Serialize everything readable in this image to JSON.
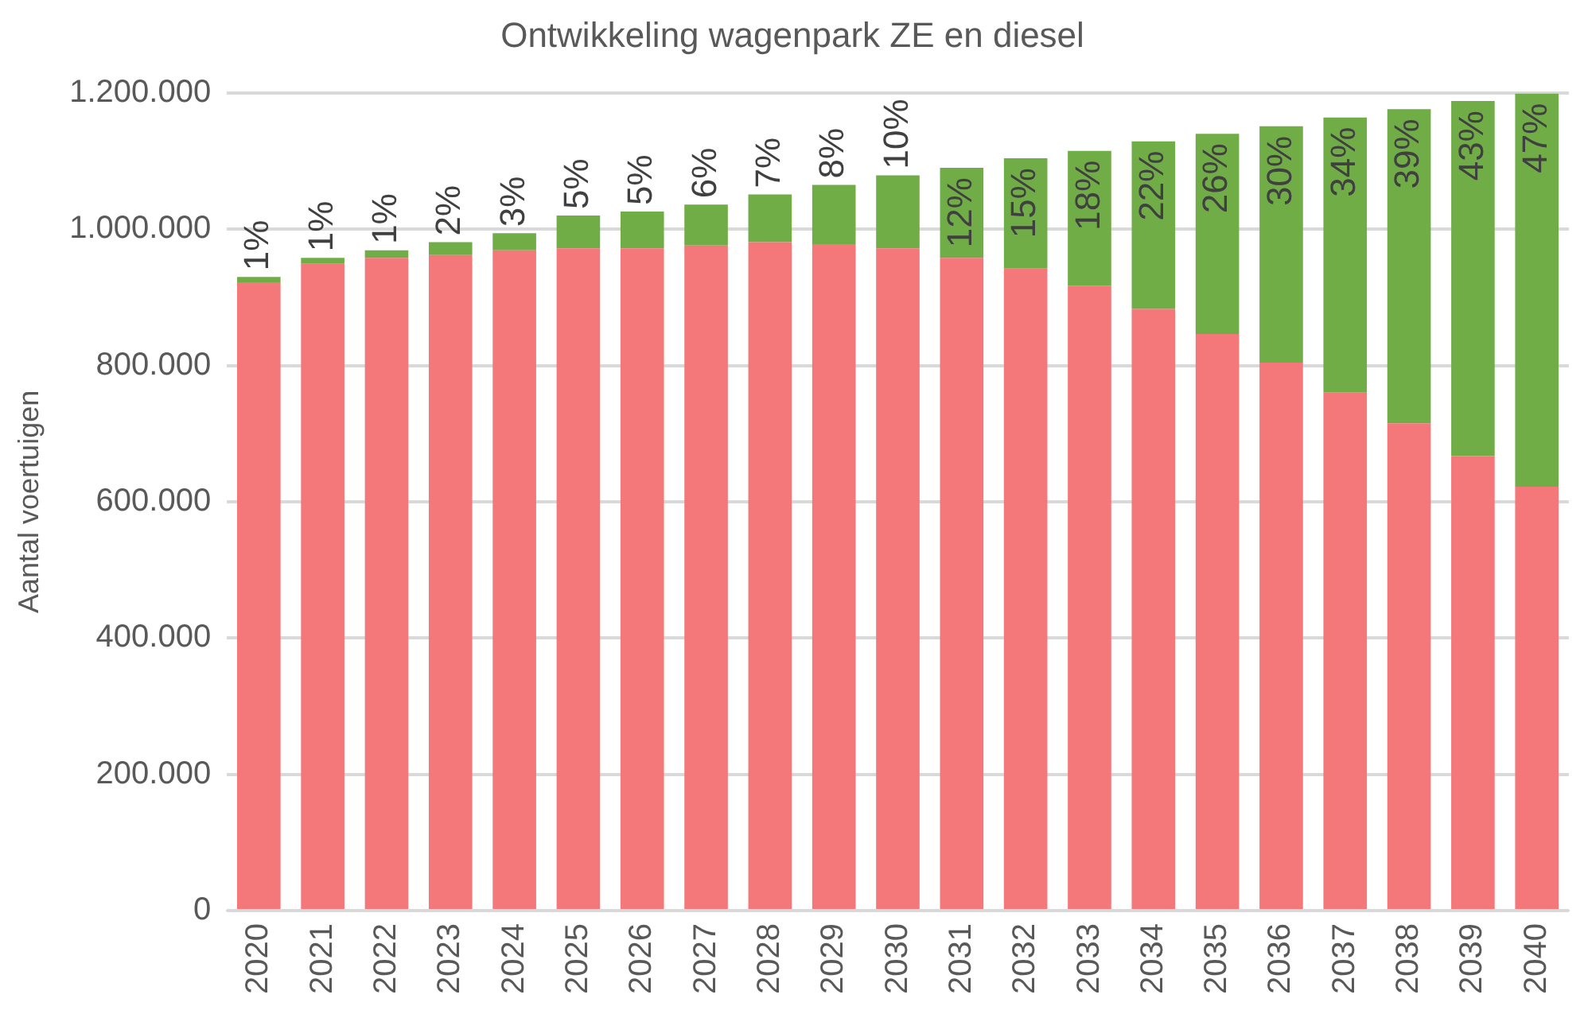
{
  "chart_data": {
    "type": "bar",
    "title": "Ontwikkeling wagenpark ZE en diesel",
    "ylabel": "Aantal voertuigen",
    "categories": [
      "2020",
      "2021",
      "2022",
      "2023",
      "2024",
      "2025",
      "2026",
      "2027",
      "2028",
      "2029",
      "2030",
      "2031",
      "2032",
      "2033",
      "2034",
      "2035",
      "2036",
      "2037",
      "2038",
      "2039",
      "2040"
    ],
    "stacked": true,
    "series": [
      {
        "color": "#f4777a",
        "values": [
          922000,
          949000,
          958000,
          962000,
          969000,
          972000,
          972000,
          976000,
          981000,
          978000,
          972000,
          958000,
          942000,
          917000,
          883000,
          846000,
          804000,
          760000,
          715000,
          667000,
          622000
        ]
      },
      {
        "color": "#70ad47",
        "values": [
          8000,
          9000,
          11000,
          19000,
          25000,
          48000,
          54000,
          60000,
          70000,
          87000,
          107000,
          132000,
          162000,
          198000,
          246000,
          294000,
          347000,
          404000,
          461000,
          521000,
          577000
        ]
      }
    ],
    "annotations": [
      {
        "text": "1%",
        "x": "2020",
        "y": 930000
      },
      {
        "text": "1%",
        "x": "2021",
        "y": 958000
      },
      {
        "text": "1%",
        "x": "2022",
        "y": 969000
      },
      {
        "text": "2%",
        "x": "2023",
        "y": 981000
      },
      {
        "text": "3%",
        "x": "2024",
        "y": 994000
      },
      {
        "text": "5%",
        "x": "2025",
        "y": 1020000
      },
      {
        "text": "5%",
        "x": "2026",
        "y": 1026000
      },
      {
        "text": "6%",
        "x": "2027",
        "y": 1036000
      },
      {
        "text": "7%",
        "x": "2028",
        "y": 1051000
      },
      {
        "text": "8%",
        "x": "2029",
        "y": 1065000
      },
      {
        "text": "10%",
        "x": "2030",
        "y": 1079000
      },
      {
        "text": "12%",
        "x": "2031",
        "y": 1090000
      },
      {
        "text": "15%",
        "x": "2032",
        "y": 1104000
      },
      {
        "text": "18%",
        "x": "2033",
        "y": 1115000
      },
      {
        "text": "22%",
        "x": "2034",
        "y": 1129000
      },
      {
        "text": "26%",
        "x": "2035",
        "y": 1140000
      },
      {
        "text": "30%",
        "x": "2036",
        "y": 1151000
      },
      {
        "text": "34%",
        "x": "2037",
        "y": 1164000
      },
      {
        "text": "39%",
        "x": "2038",
        "y": 1176000
      },
      {
        "text": "43%",
        "x": "2039",
        "y": 1188000
      },
      {
        "text": "47%",
        "x": "2040",
        "y": 1199000
      }
    ],
    "ylim": [
      0,
      1200000
    ],
    "yticks": [
      {
        "value": 0,
        "label": "0"
      },
      {
        "value": 200000,
        "label": "200.000"
      },
      {
        "value": 400000,
        "label": "400.000"
      },
      {
        "value": 600000,
        "label": "600.000"
      },
      {
        "value": 800000,
        "label": "800.000"
      },
      {
        "value": 1000000,
        "label": "1.000.000"
      },
      {
        "value": 1200000,
        "label": "1.200.000"
      }
    ],
    "grid": "y",
    "legend": false
  }
}
